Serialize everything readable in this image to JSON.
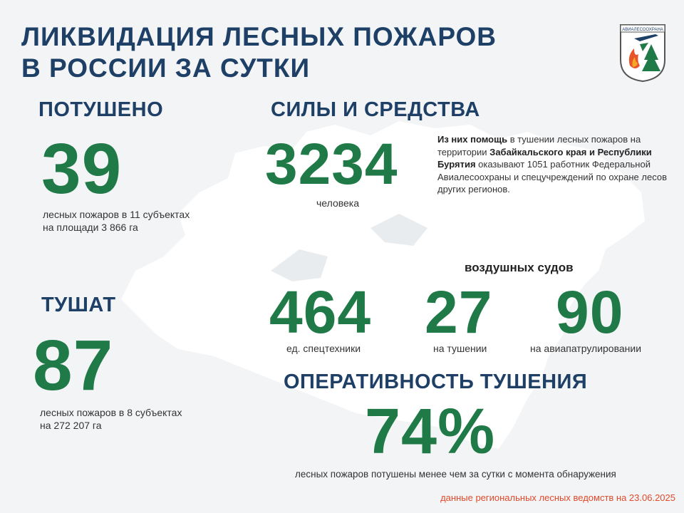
{
  "header": {
    "title_line1": "ЛИКВИДАЦИЯ ЛЕСНЫХ ПОЖАРОВ",
    "title_line2": "В РОССИИ ЗА СУТКИ",
    "logo_text": "АВИАЛЕСООХРАНА"
  },
  "extinguished": {
    "heading": "ПОТУШЕНО",
    "value": "39",
    "line1": "лесных пожаров в 11 субъектах",
    "line2": "на площади  3 866 га"
  },
  "forces": {
    "heading": "СИЛЫ И СРЕДСТВА",
    "value": "3234",
    "unit": "человека",
    "desc_b1": "Из них помощь",
    "desc_t1": " в тушении лесных пожаров на территории ",
    "desc_b2": "Забайкальского края и Республики Бурятия",
    "desc_t2": " оказывают 1051 работник Федеральной Авиалесоохраны и спецучреждений по охране лесов других регионов."
  },
  "fighting": {
    "heading": "ТУШАТ",
    "value": "87",
    "line1": "лесных пожаров в 8 субъектах",
    "line2": "на 272 207 га"
  },
  "equipment": {
    "value": "464",
    "label": "ед. спецтехники"
  },
  "aircraft": {
    "heading": "воздушных судов",
    "fighting_value": "27",
    "fighting_label": "на тушении",
    "patrol_value": "90",
    "patrol_label": "на авиапатрулировании"
  },
  "efficiency": {
    "heading": "ОПЕРАТИВНОСТЬ ТУШЕНИЯ",
    "value": "74%",
    "caption": "лесных  пожаров потушены  менее чем за сутки  с момента обнаружения"
  },
  "footer": {
    "source": "данные региональных лесных ведомств на 23.06.2025"
  },
  "colors": {
    "title": "#1e3f66",
    "number_green": "#1f7a47",
    "footer_red": "#e04a2a",
    "background": "#f3f4f6"
  }
}
